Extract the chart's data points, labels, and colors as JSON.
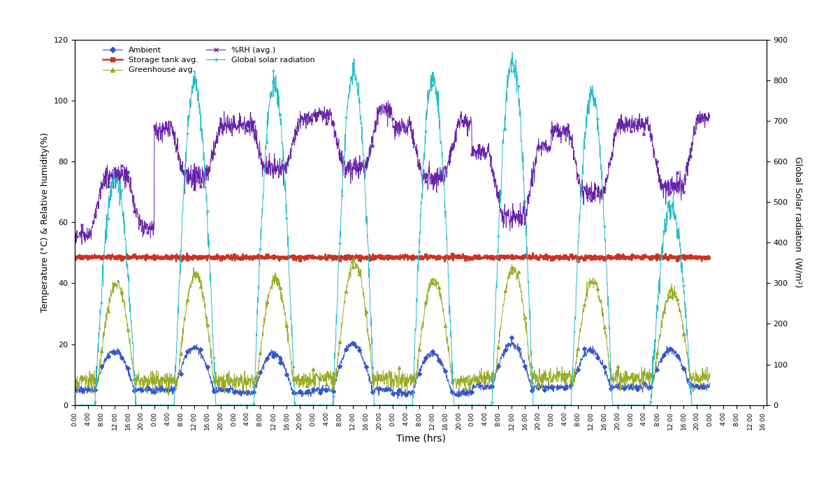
{
  "title": "",
  "xlabel": "Time (hrs)",
  "ylabel_left": "Temperature (°C) & Relative humidity(%)",
  "ylabel_right": "Global Solar radiation  (W/m²)",
  "ylim_left": [
    0,
    120
  ],
  "ylim_right": [
    0,
    900
  ],
  "left_yticks": [
    0,
    20,
    40,
    60,
    80,
    100,
    120
  ],
  "right_yticks": [
    0,
    100,
    200,
    300,
    400,
    500,
    600,
    700,
    800,
    900
  ],
  "n_days": 8,
  "pts_per_day": 288,
  "legend_entries": [
    "Ambient",
    "Storage tank avg.",
    "Greenhouse avg.",
    "%RH (avg.)",
    "Global solar radiation"
  ],
  "line_colors": [
    "#3355cc",
    "#cc3322",
    "#99aa22",
    "#6622aa",
    "#22bbcc"
  ],
  "line_markers": [
    "D",
    "s",
    "^",
    "x",
    "+"
  ],
  "figsize": [
    11.92,
    7.07
  ],
  "dpi": 100,
  "bg_color": "#ffffff",
  "ambient_base": [
    5,
    5,
    4,
    5,
    4,
    6,
    6,
    6
  ],
  "ambient_amp": [
    13,
    14,
    13,
    15,
    13,
    14,
    12,
    12
  ],
  "gh_base": [
    8,
    8,
    8,
    9,
    8,
    9,
    9,
    9
  ],
  "gh_amp": [
    32,
    35,
    33,
    38,
    33,
    36,
    32,
    28
  ],
  "storage_mean": 48.5,
  "solar_peaks": [
    560,
    790,
    790,
    820,
    800,
    850,
    770,
    490
  ],
  "rh_night": [
    58,
    92,
    94,
    97,
    93,
    85,
    92,
    94
  ],
  "rh_day_min": [
    75,
    75,
    78,
    78,
    75,
    62,
    70,
    72
  ]
}
